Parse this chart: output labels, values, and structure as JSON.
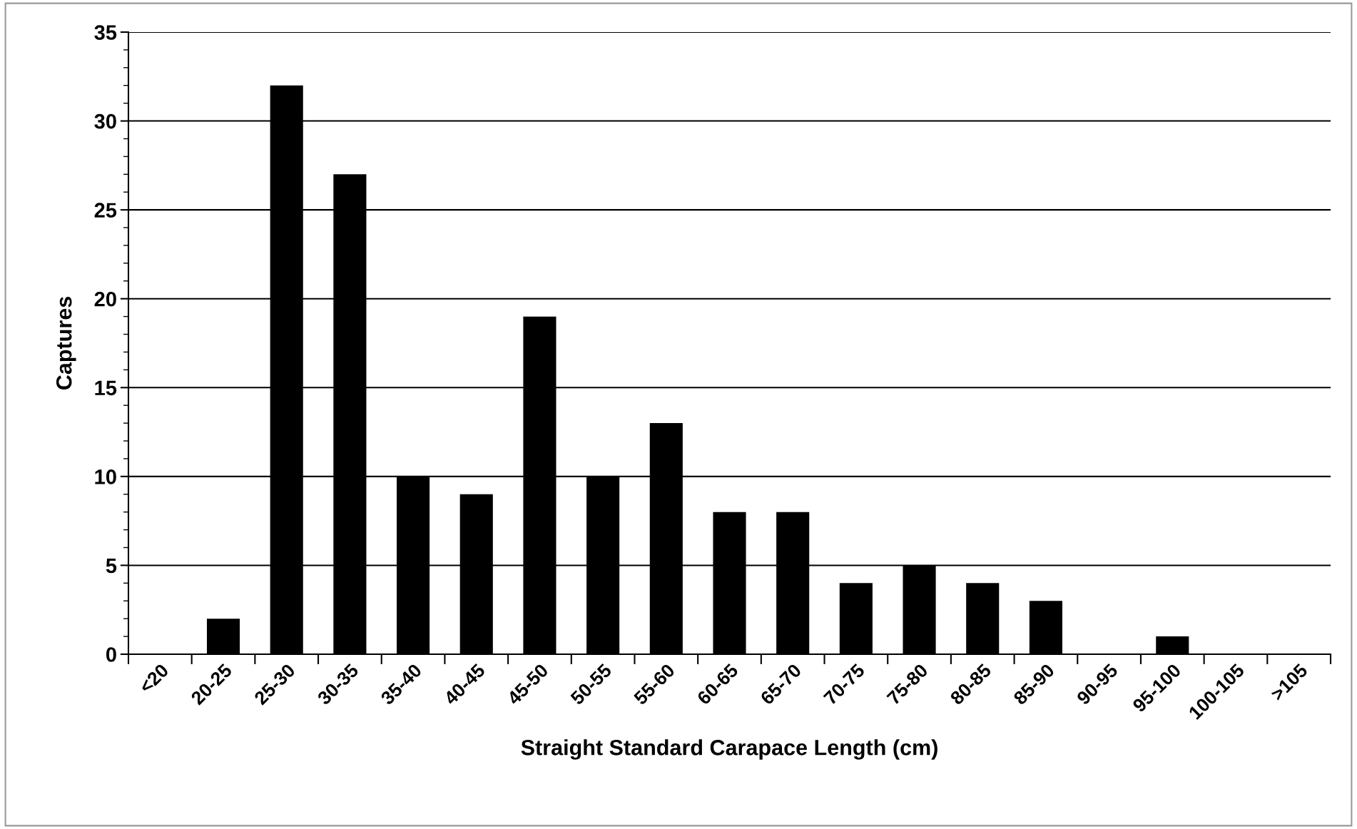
{
  "chart_data": {
    "type": "bar",
    "xlabel": "Straight Standard Carapace Length (cm)",
    "ylabel": "Captures",
    "categories": [
      "<20",
      "20-25",
      "25-30",
      "30-35",
      "35-40",
      "40-45",
      "45-50",
      "50-55",
      "55-60",
      "60-65",
      "65-70",
      "70-75",
      "75-80",
      "80-85",
      "85-90",
      "90-95",
      "95-100",
      "100-105",
      ">105"
    ],
    "values": [
      0,
      2,
      32,
      27,
      10,
      9,
      19,
      10,
      13,
      8,
      8,
      4,
      5,
      4,
      3,
      0,
      1,
      0,
      0
    ],
    "color": "#000000",
    "ylim": [
      0,
      35
    ],
    "yticks": [
      0,
      5,
      10,
      15,
      20,
      25,
      30,
      35
    ],
    "grid": "y",
    "legend": false
  }
}
